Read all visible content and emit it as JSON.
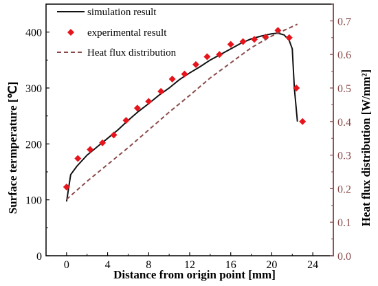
{
  "chart_data": {
    "type": "line",
    "title": "",
    "xlabel": "Distance from origin point [mm]",
    "ylabel_left": "Surface termperature [℃]",
    "ylabel_right": "Heat flux distribution [W/mm²]",
    "xlim": [
      -2,
      26
    ],
    "ylim_left": [
      0,
      450
    ],
    "ylim_right": [
      0,
      0.75
    ],
    "x_ticks": [
      0,
      4,
      8,
      12,
      16,
      20,
      24
    ],
    "y_left_ticks": [
      0,
      100,
      200,
      300,
      400
    ],
    "y_right_ticks": [
      0,
      0.1,
      0.2,
      0.3,
      0.4,
      0.5,
      0.6,
      0.7
    ],
    "legend_position": "top-left",
    "grid": false,
    "series": [
      {
        "name": "simulation result",
        "axis": "left",
        "style": "line",
        "color": "#111111",
        "x": [
          0,
          0.4,
          1.0,
          2.0,
          3.0,
          4.0,
          5.0,
          6.0,
          7.0,
          8.0,
          9.0,
          10.0,
          11.0,
          12.0,
          13.0,
          14.0,
          15.0,
          16.0,
          17.0,
          18.0,
          19.0,
          20.0,
          20.6,
          21.2,
          21.7,
          22.0,
          22.2,
          22.5
        ],
        "y": [
          97,
          145,
          160,
          180,
          195,
          210,
          225,
          242,
          258,
          272,
          287,
          300,
          315,
          327,
          338,
          350,
          360,
          370,
          380,
          388,
          393,
          397,
          398,
          395,
          385,
          370,
          300,
          240
        ]
      },
      {
        "name": "experimental result",
        "axis": "left",
        "style": "marker",
        "color": "#e8141b",
        "x": [
          0,
          1.1,
          2.3,
          3.5,
          4.6,
          5.8,
          6.9,
          8.0,
          9.2,
          10.3,
          11.5,
          12.6,
          13.7,
          14.9,
          16.0,
          17.2,
          18.3,
          19.4,
          20.6,
          21.7,
          22.4,
          23.0
        ],
        "y": [
          123,
          174,
          190,
          202,
          216,
          242,
          264,
          276,
          294,
          316,
          325,
          342,
          356,
          360,
          378,
          383,
          387,
          391,
          403,
          390,
          300,
          240
        ]
      },
      {
        "name": "Heat flux distribution",
        "axis": "right",
        "style": "dash",
        "color": "#8a4a4a",
        "x": [
          0,
          2,
          4,
          6,
          8,
          10,
          12,
          14,
          16,
          18,
          20,
          22.5
        ],
        "y": [
          0.168,
          0.222,
          0.272,
          0.322,
          0.375,
          0.428,
          0.478,
          0.53,
          0.575,
          0.62,
          0.655,
          0.69
        ]
      }
    ]
  }
}
